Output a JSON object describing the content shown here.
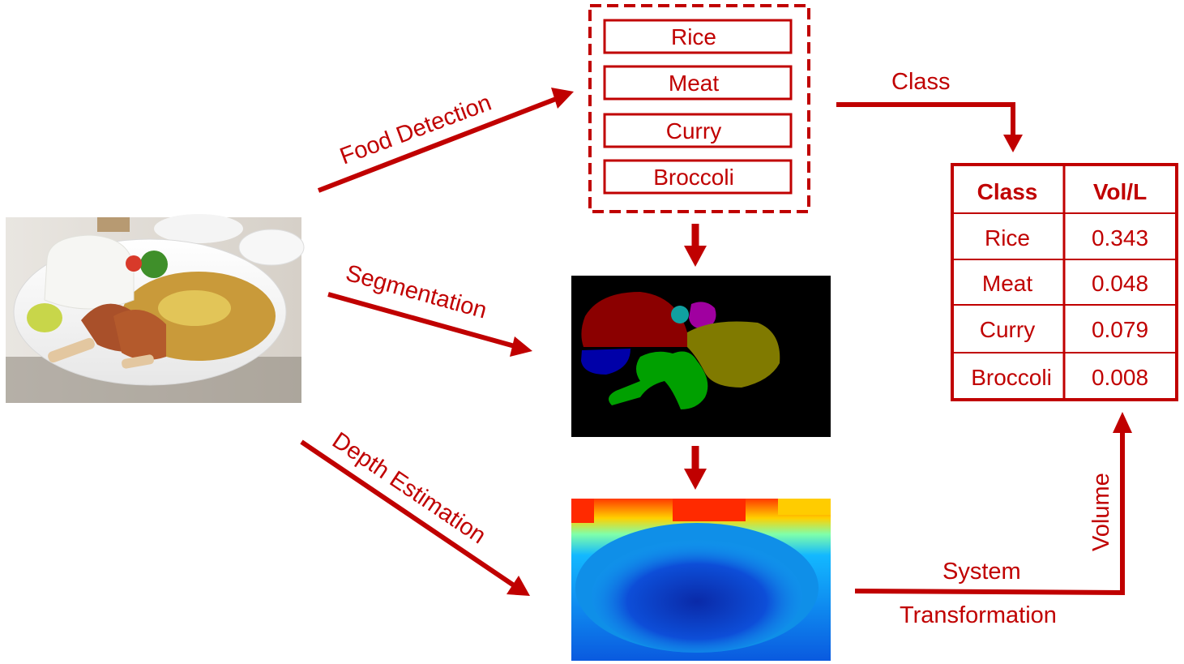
{
  "colors": {
    "accent": "#c00000"
  },
  "labels": {
    "food_detection": "Food Detection",
    "segmentation": "Segmentation",
    "depth_estimation": "Depth Estimation",
    "class_arrow": "Class",
    "system": "System",
    "transformation": "Transformation",
    "volume": "Volume"
  },
  "detections": [
    "Rice",
    "Meat",
    "Curry",
    "Broccoli"
  ],
  "table": {
    "headers": [
      "Class",
      "Vol/L"
    ],
    "rows": [
      [
        "Rice",
        "0.343"
      ],
      [
        "Meat",
        "0.048"
      ],
      [
        "Curry",
        "0.079"
      ],
      [
        "Broccoli",
        "0.008"
      ]
    ]
  }
}
